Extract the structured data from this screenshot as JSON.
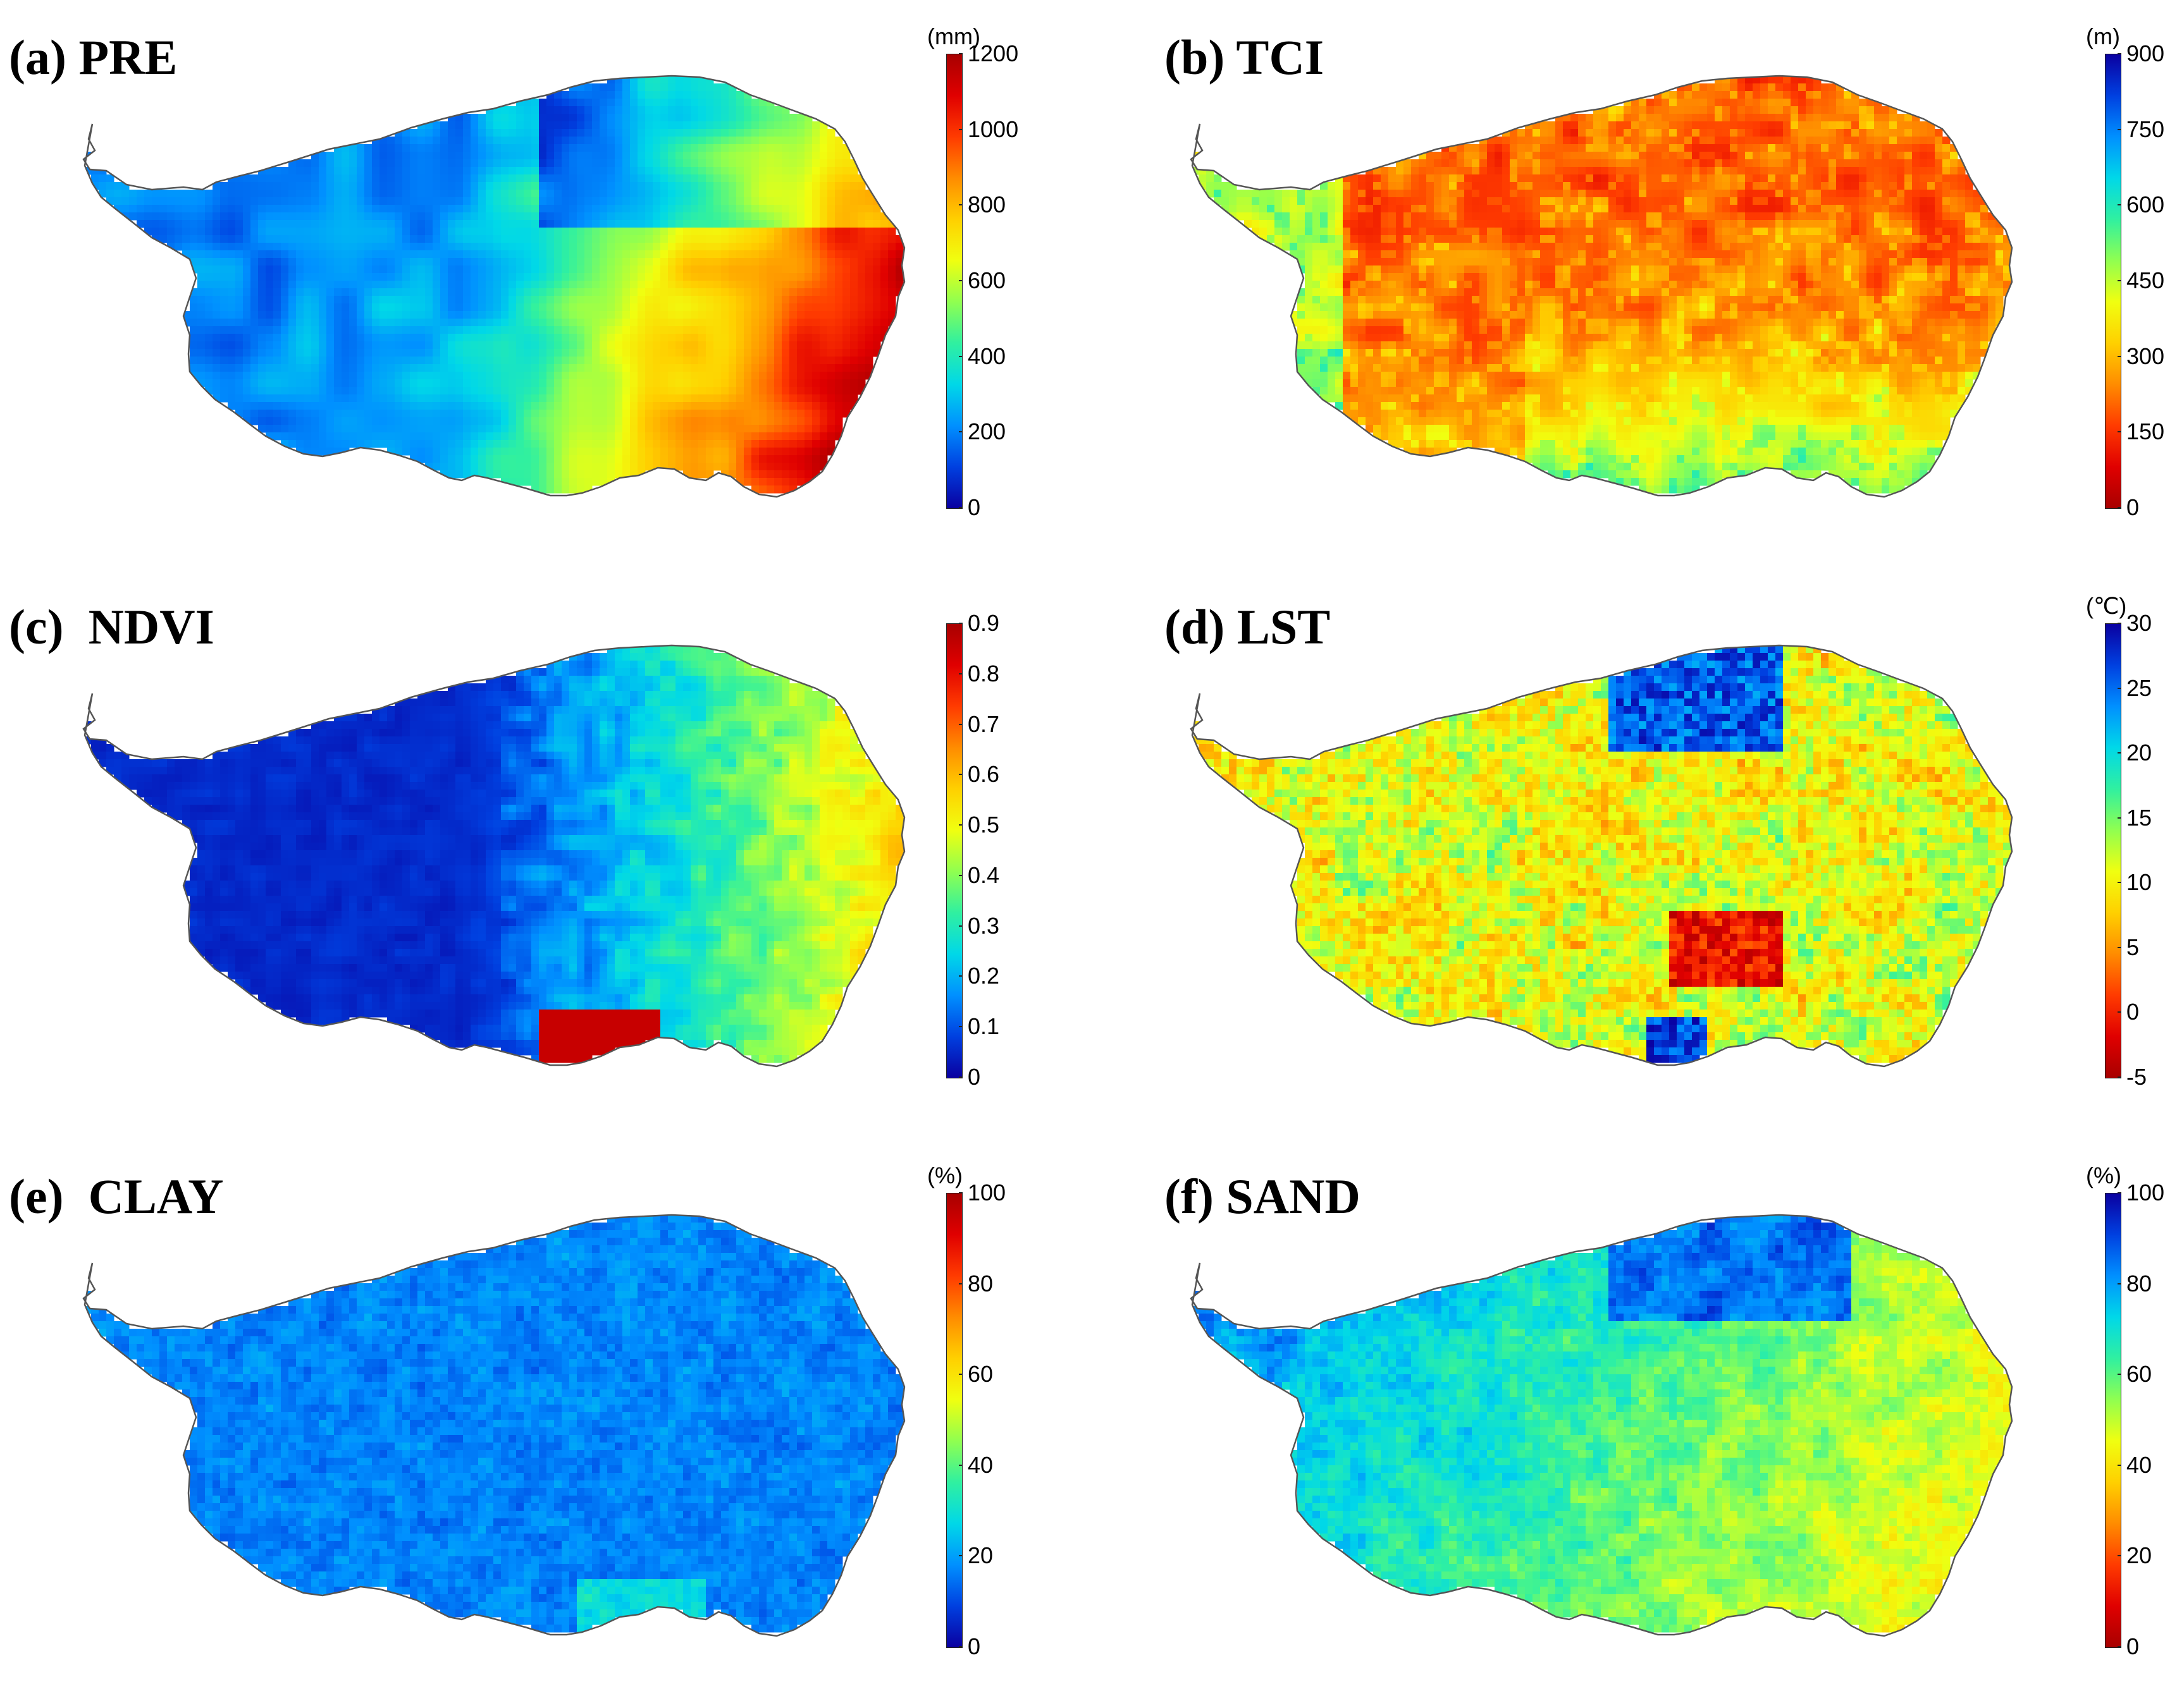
{
  "colormap": [
    "#a80000",
    "#e00000",
    "#ff3b00",
    "#ff8c00",
    "#ffd000",
    "#f0ff10",
    "#90ff50",
    "#30f0a0",
    "#00d8e8",
    "#0090ff",
    "#0040e0",
    "#0a00a0"
  ],
  "panels": [
    {
      "id": "a",
      "title": "(a) PRE",
      "unit": "(mm)",
      "ticks": [
        "1200",
        "1000",
        "800",
        "600",
        "400",
        "200",
        "0"
      ],
      "reversed": true,
      "pattern": "precipitation",
      "legend_note": "west-dry east-wet"
    },
    {
      "id": "b",
      "title": "(b) TCI",
      "unit": "(m)",
      "ticks": [
        "900",
        "750",
        "600",
        "450",
        "300",
        "150",
        "0"
      ],
      "reversed": false,
      "pattern": "tci"
    },
    {
      "id": "c",
      "title": "(c)  NDVI",
      "unit": "",
      "ticks": [
        "0.9",
        "0.8",
        "0.7",
        "0.6",
        "0.5",
        "0.4",
        "0.3",
        "0.2",
        "0.1",
        "0"
      ],
      "reversed": true,
      "pattern": "ndvi"
    },
    {
      "id": "d",
      "title": "(d) LST",
      "unit": "(℃)",
      "ticks": [
        "30",
        "25",
        "20",
        "15",
        "10",
        "5",
        "0",
        "-5"
      ],
      "reversed": false,
      "pattern": "lst"
    },
    {
      "id": "e",
      "title": "(e)  CLAY",
      "unit": "(%)",
      "ticks": [
        "100",
        "80",
        "60",
        "40",
        "20",
        "0"
      ],
      "reversed": true,
      "pattern": "clay"
    },
    {
      "id": "f",
      "title": "(f) SAND",
      "unit": "(%)",
      "ticks": [
        "100",
        "80",
        "60",
        "40",
        "20",
        "0"
      ],
      "reversed": false,
      "pattern": "sand"
    }
  ]
}
